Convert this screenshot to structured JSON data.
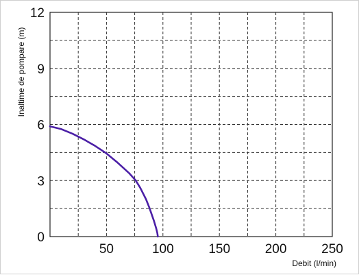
{
  "chart_data": {
    "type": "line",
    "title": "",
    "xlabel": "Debit (l/min)",
    "ylabel": "Inaltime de pompare (m)",
    "xlim": [
      0,
      250
    ],
    "ylim": [
      0,
      12
    ],
    "x_ticks": [
      50,
      100,
      150,
      200,
      250
    ],
    "y_ticks": [
      0,
      3,
      6,
      9,
      12
    ],
    "x_grid": [
      25,
      50,
      75,
      100,
      125,
      150,
      175,
      200,
      225
    ],
    "y_grid": [
      1.5,
      3,
      4.5,
      6,
      7.5,
      9,
      10.5
    ],
    "grid": true,
    "grid_style": "dashed",
    "series": [
      {
        "color": "#4b1fa6",
        "x": [
          0,
          10,
          20,
          30,
          40,
          50,
          60,
          70,
          76,
          80,
          85,
          88,
          90,
          92,
          94,
          95,
          95.5
        ],
        "y": [
          5.9,
          5.75,
          5.5,
          5.2,
          4.85,
          4.45,
          3.95,
          3.4,
          3.0,
          2.6,
          2.0,
          1.55,
          1.2,
          0.85,
          0.45,
          0.2,
          0
        ]
      }
    ]
  }
}
